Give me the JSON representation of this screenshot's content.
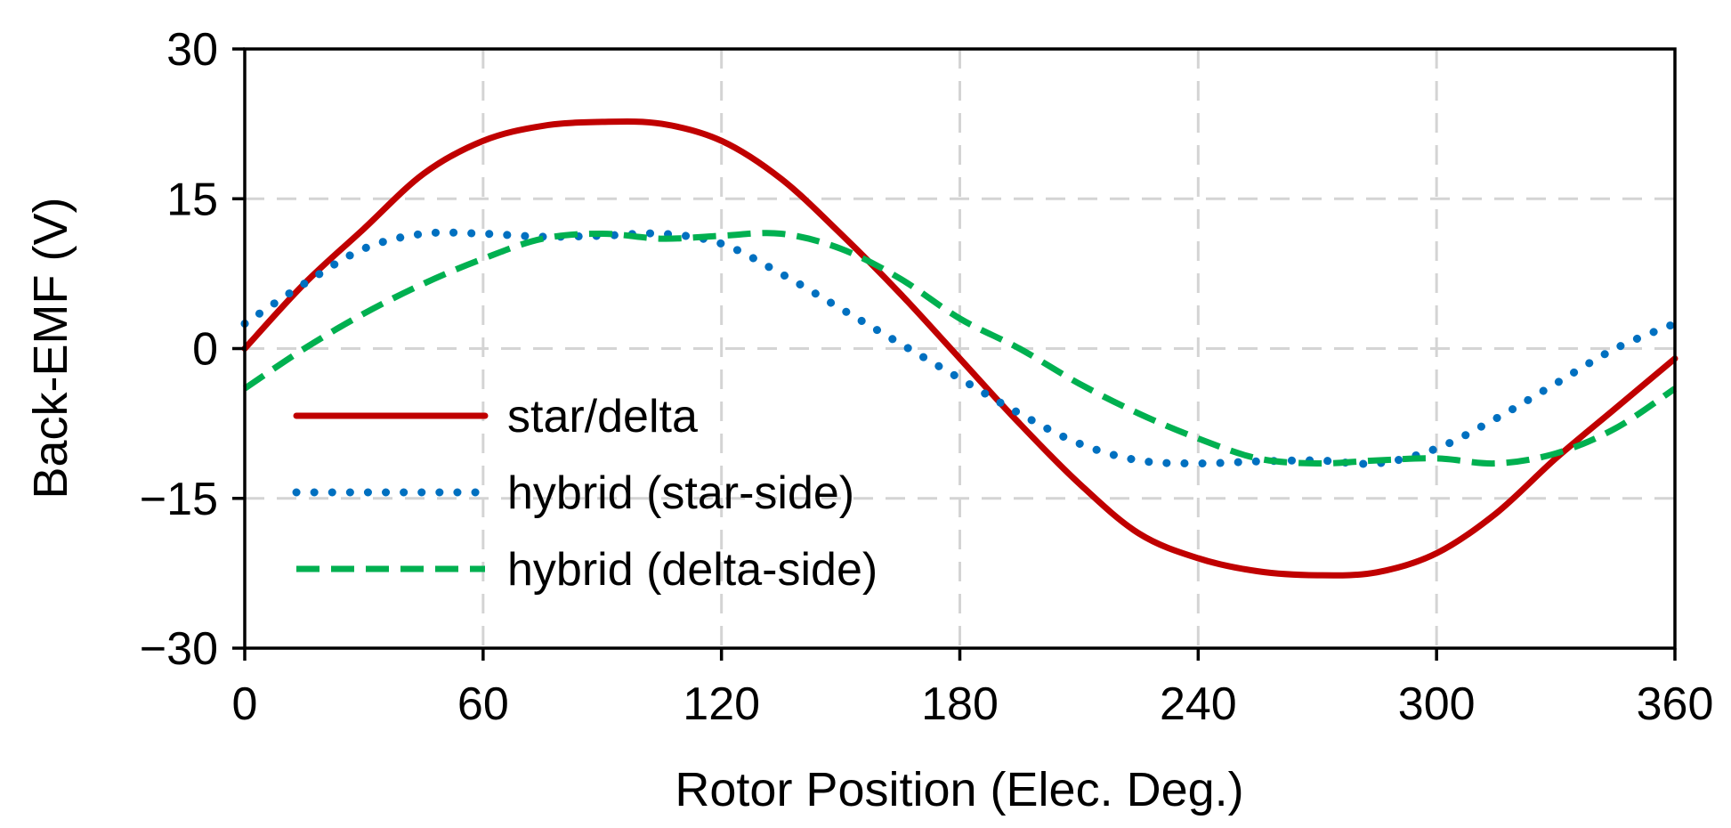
{
  "chart_data": {
    "type": "line",
    "title": "",
    "xlabel": "Rotor Position (Elec. Deg.)",
    "ylabel": "Back-EMF (V)",
    "xlim": [
      0,
      360
    ],
    "ylim": [
      -30,
      30
    ],
    "x_ticks": [
      0,
      60,
      120,
      180,
      240,
      300,
      360
    ],
    "y_ticks": [
      30,
      15,
      0,
      -15,
      -30
    ],
    "x_tick_labels": [
      "0",
      "60",
      "120",
      "180",
      "240",
      "300",
      "360"
    ],
    "y_tick_labels": [
      "30",
      "15",
      "0",
      "−15",
      "−30"
    ],
    "grid": true,
    "legend_position": "lower-left",
    "x": [
      0,
      15,
      30,
      45,
      60,
      75,
      90,
      105,
      120,
      135,
      150,
      165,
      180,
      195,
      210,
      225,
      240,
      255,
      270,
      285,
      300,
      315,
      330,
      345,
      360
    ],
    "series": [
      {
        "name": "star/delta",
        "color": "#c00000",
        "style": "solid",
        "values": [
          0,
          6.5,
          12.0,
          17.5,
          20.8,
          22.3,
          22.7,
          22.5,
          20.8,
          17.0,
          11.5,
          5.5,
          -1.0,
          -7.5,
          -13.5,
          -18.5,
          -21.0,
          -22.3,
          -22.7,
          -22.4,
          -20.5,
          -16.5,
          -11.0,
          -6.0,
          -1.0
        ]
      },
      {
        "name": "hybrid (star-side)",
        "color": "#0070c0",
        "style": "dotted",
        "values": [
          2.5,
          6.5,
          10.0,
          11.5,
          11.5,
          11.2,
          11.3,
          11.5,
          10.5,
          7.5,
          4.0,
          0.5,
          -3.0,
          -6.5,
          -9.5,
          -11.2,
          -11.5,
          -11.3,
          -11.2,
          -11.5,
          -10.0,
          -7.0,
          -3.5,
          0.0,
          2.5
        ]
      },
      {
        "name": "hybrid (delta-side)",
        "color": "#00b050",
        "style": "dashed",
        "values": [
          -4.0,
          0.0,
          3.5,
          6.5,
          9.0,
          11.0,
          11.5,
          11.0,
          11.3,
          11.5,
          10.0,
          7.0,
          3.0,
          0.0,
          -3.5,
          -6.5,
          -9.0,
          -11.0,
          -11.5,
          -11.2,
          -11.0,
          -11.5,
          -10.5,
          -8.0,
          -4.0
        ]
      }
    ]
  }
}
